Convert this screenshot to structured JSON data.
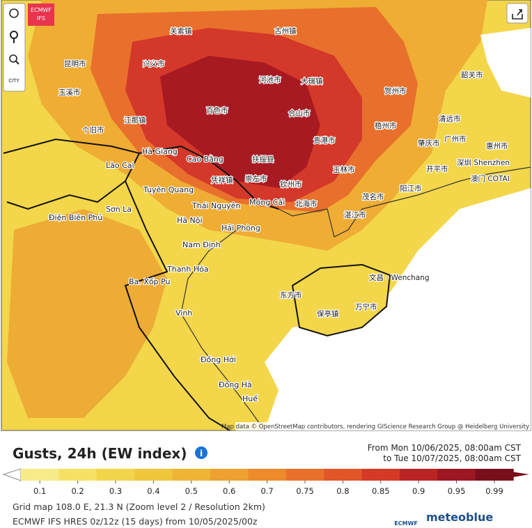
{
  "badge": {
    "line1": "ECMWF",
    "line2": "IFS"
  },
  "toolbar": {
    "city": "CITY"
  },
  "map": {
    "labels": [
      "百色市",
      "河池市",
      "扶绥县",
      "崇左市",
      "钦州市",
      "北海市",
      "贵港市",
      "玉林市",
      "梧州市",
      "广州市",
      "深圳 Shenzhen",
      "湛江市",
      "茂名市",
      "阳江市",
      "文昌 - Wenchang",
      "东方市",
      "万宁市",
      "保亭镇",
      "兴义市",
      "昆明市",
      "玉溪市",
      "个旧市",
      "江那镇",
      "合山市",
      "大瑞镇",
      "古州镇",
      "关索镇",
      "贺州市",
      "肇庆市",
      "开平市",
      "惠州市",
      "清远市",
      "韶关市",
      "凭祥镇",
      "Hà Giang",
      "Cao Bằng",
      "Lào Cai",
      "Tuyên Quang",
      "Thái Nguyên",
      "Móng Cái",
      "Hà Nội",
      "Hải Phòng",
      "Nam Định",
      "Thanh Hóa",
      "Vinh",
      "Đồng Hới",
      "Đông Hà",
      "Huế",
      "Sơn La",
      "Điện Biên Phủ",
      "Ba. Xốp Pu",
      "澳门 COTAI"
    ],
    "attribution": "Map data © OpenStreetMap contributors, rendering GIScience Research Group @ Heidelberg University"
  },
  "legend": {
    "title": "Gusts, 24h (EW index)",
    "info": "i",
    "from": "From Mon 10/06/2025, 08:00am CST",
    "to": "to Tue 10/07/2025, 08:00am CST",
    "ticks": [
      "0.1",
      "0.2",
      "0.3",
      "0.4",
      "0.5",
      "0.6",
      "0.7",
      "0.75",
      "0.8",
      "0.85",
      "0.9",
      "0.95",
      "0.99"
    ]
  },
  "footer": {
    "grid": "Grid map 108.0 E, 21.3 N (Zoom level 2 / Resolution 2km)",
    "model": "ECMWF IFS HRES 0z/12z (15 days) from 10/05/2025/00z",
    "ecmwf": "ECMWF",
    "brand": "meteoblue"
  }
}
